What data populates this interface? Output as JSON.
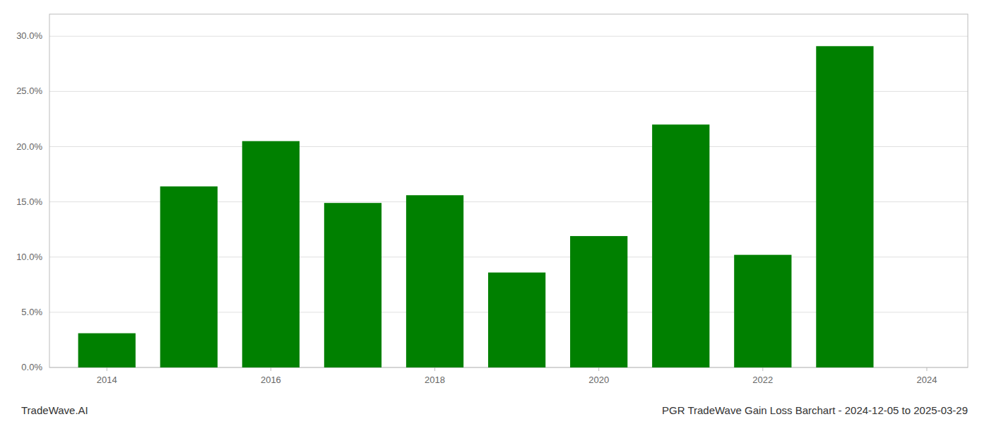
{
  "chart_data": {
    "type": "bar",
    "title": "PGR TradeWave Gain Loss Barchart - 2024-12-05 to 2025-03-29",
    "annotations": [
      "TradeWave.AI"
    ],
    "x": [
      2014,
      2015,
      2016,
      2017,
      2018,
      2019,
      2020,
      2021,
      2022,
      2023
    ],
    "values": [
      0.031,
      0.164,
      0.205,
      0.149,
      0.156,
      0.086,
      0.119,
      0.22,
      0.102,
      0.291
    ],
    "color": "#008000",
    "xlim": [
      2013.3,
      2024.5
    ],
    "xticks": [
      2014,
      2016,
      2018,
      2020,
      2022,
      2024
    ],
    "ylim": [
      0,
      0.32
    ],
    "yticks": [
      {
        "value": 0.0,
        "label": "0.0%"
      },
      {
        "value": 0.05,
        "label": "5.0%"
      },
      {
        "value": 0.1,
        "label": "10.0%"
      },
      {
        "value": 0.15,
        "label": "15.0%"
      },
      {
        "value": 0.2,
        "label": "20.0%"
      },
      {
        "value": 0.25,
        "label": "25.0%"
      },
      {
        "value": 0.3,
        "label": "30.0%"
      }
    ],
    "grid": true
  }
}
